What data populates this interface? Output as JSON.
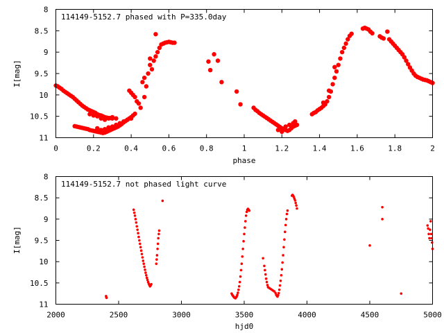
{
  "chart_data": [
    {
      "type": "scatter",
      "title": "114149-5152.7 phased with P=335.0day",
      "xlabel": "phase",
      "ylabel": "I[mag]",
      "xlim": [
        0,
        2
      ],
      "ylim": [
        11,
        8
      ],
      "y_inverted": true,
      "grid": false,
      "legend": "none",
      "marker": "filled-circle",
      "color": "#ff0000",
      "xticks": [
        0,
        0.2,
        0.4,
        0.6,
        0.8,
        1,
        1.2,
        1.4,
        1.6,
        1.8,
        2
      ],
      "xtick_labels": [
        "0",
        "0.2",
        "0.4",
        "0.6",
        "0.8",
        "1",
        "1.2",
        "1.4",
        "1.6",
        "1.8",
        "2"
      ],
      "yticks": [
        8,
        8.5,
        9,
        9.5,
        10,
        10.5,
        11
      ],
      "ytick_labels": [
        "8",
        "8.5",
        "9",
        "9.5",
        "10",
        "10.5",
        "11"
      ],
      "points": [
        [
          0.0,
          9.78
        ],
        [
          0.01,
          9.8
        ],
        [
          0.02,
          9.83
        ],
        [
          0.03,
          9.86
        ],
        [
          0.04,
          9.9
        ],
        [
          0.05,
          9.93
        ],
        [
          0.06,
          9.96
        ],
        [
          0.07,
          9.99
        ],
        [
          0.08,
          10.02
        ],
        [
          0.09,
          10.05
        ],
        [
          0.1,
          10.09
        ],
        [
          0.11,
          10.13
        ],
        [
          0.12,
          10.17
        ],
        [
          0.13,
          10.21
        ],
        [
          0.14,
          10.25
        ],
        [
          0.15,
          10.28
        ],
        [
          0.16,
          10.31
        ],
        [
          0.17,
          10.34
        ],
        [
          0.18,
          10.36
        ],
        [
          0.19,
          10.38
        ],
        [
          0.2,
          10.4
        ],
        [
          0.21,
          10.42
        ],
        [
          0.22,
          10.45
        ],
        [
          0.23,
          10.47
        ],
        [
          0.24,
          10.48
        ],
        [
          0.25,
          10.5
        ],
        [
          0.26,
          10.52
        ],
        [
          0.27,
          10.53
        ],
        [
          0.28,
          10.54
        ],
        [
          0.29,
          10.54
        ],
        [
          0.3,
          10.55
        ],
        [
          0.18,
          10.45
        ],
        [
          0.2,
          10.48
        ],
        [
          0.22,
          10.5
        ],
        [
          0.24,
          10.55
        ],
        [
          0.26,
          10.58
        ],
        [
          0.28,
          10.55
        ],
        [
          0.3,
          10.52
        ],
        [
          0.32,
          10.55
        ],
        [
          0.1,
          10.73
        ],
        [
          0.11,
          10.74
        ],
        [
          0.12,
          10.75
        ],
        [
          0.13,
          10.76
        ],
        [
          0.14,
          10.77
        ],
        [
          0.15,
          10.78
        ],
        [
          0.16,
          10.79
        ],
        [
          0.17,
          10.8
        ],
        [
          0.18,
          10.82
        ],
        [
          0.19,
          10.83
        ],
        [
          0.2,
          10.84
        ],
        [
          0.21,
          10.85
        ],
        [
          0.22,
          10.86
        ],
        [
          0.23,
          10.87
        ],
        [
          0.24,
          10.88
        ],
        [
          0.25,
          10.89
        ],
        [
          0.26,
          10.88
        ],
        [
          0.27,
          10.86
        ],
        [
          0.28,
          10.84
        ],
        [
          0.29,
          10.82
        ],
        [
          0.3,
          10.8
        ],
        [
          0.31,
          10.78
        ],
        [
          0.32,
          10.76
        ],
        [
          0.33,
          10.74
        ],
        [
          0.34,
          10.71
        ],
        [
          0.35,
          10.68
        ],
        [
          0.36,
          10.64
        ],
        [
          0.37,
          10.61
        ],
        [
          0.38,
          10.58
        ],
        [
          0.39,
          10.55
        ],
        [
          0.4,
          10.52
        ],
        [
          0.41,
          10.48
        ],
        [
          0.42,
          10.44
        ],
        [
          0.22,
          10.78
        ],
        [
          0.24,
          10.82
        ],
        [
          0.26,
          10.8
        ],
        [
          0.28,
          10.76
        ],
        [
          0.3,
          10.74
        ],
        [
          0.32,
          10.7
        ],
        [
          0.34,
          10.66
        ],
        [
          0.36,
          10.62
        ],
        [
          0.38,
          10.58
        ],
        [
          0.4,
          10.55
        ],
        [
          0.39,
          9.9
        ],
        [
          0.4,
          9.95
        ],
        [
          0.41,
          10.0
        ],
        [
          0.42,
          10.05
        ],
        [
          0.43,
          10.15
        ],
        [
          0.44,
          10.2
        ],
        [
          0.45,
          10.3
        ],
        [
          0.46,
          9.7
        ],
        [
          0.47,
          9.6
        ],
        [
          0.48,
          9.8
        ],
        [
          0.49,
          9.5
        ],
        [
          0.5,
          9.3
        ],
        [
          0.51,
          9.4
        ],
        [
          0.52,
          9.2
        ],
        [
          0.53,
          9.1
        ],
        [
          0.54,
          9.0
        ],
        [
          0.55,
          8.9
        ],
        [
          0.56,
          8.82
        ],
        [
          0.57,
          8.8
        ],
        [
          0.58,
          8.78
        ],
        [
          0.59,
          8.77
        ],
        [
          0.6,
          8.76
        ],
        [
          0.61,
          8.77
        ],
        [
          0.62,
          8.78
        ],
        [
          0.63,
          8.78
        ],
        [
          0.53,
          8.58
        ],
        [
          0.5,
          9.15
        ],
        [
          0.47,
          10.05
        ],
        [
          0.81,
          9.22
        ],
        [
          0.82,
          9.42
        ],
        [
          0.84,
          9.05
        ],
        [
          0.86,
          9.2
        ],
        [
          0.88,
          9.7
        ],
        [
          0.96,
          9.92
        ],
        [
          0.98,
          10.22
        ],
        [
          1.05,
          10.3
        ],
        [
          1.06,
          10.35
        ],
        [
          1.07,
          10.38
        ],
        [
          1.08,
          10.42
        ],
        [
          1.09,
          10.45
        ],
        [
          1.1,
          10.48
        ],
        [
          1.11,
          10.51
        ],
        [
          1.12,
          10.54
        ],
        [
          1.13,
          10.57
        ],
        [
          1.14,
          10.6
        ],
        [
          1.15,
          10.63
        ],
        [
          1.16,
          10.66
        ],
        [
          1.17,
          10.69
        ],
        [
          1.18,
          10.72
        ],
        [
          1.19,
          10.75
        ],
        [
          1.2,
          10.78
        ],
        [
          1.21,
          10.8
        ],
        [
          1.22,
          10.82
        ],
        [
          1.23,
          10.84
        ],
        [
          1.24,
          10.82
        ],
        [
          1.25,
          10.78
        ],
        [
          1.26,
          10.74
        ],
        [
          1.27,
          10.72
        ],
        [
          1.28,
          10.7
        ],
        [
          1.18,
          10.82
        ],
        [
          1.2,
          10.86
        ],
        [
          1.22,
          10.74
        ],
        [
          1.24,
          10.7
        ],
        [
          1.26,
          10.66
        ],
        [
          1.27,
          10.62
        ],
        [
          1.36,
          10.45
        ],
        [
          1.37,
          10.42
        ],
        [
          1.38,
          10.4
        ],
        [
          1.39,
          10.36
        ],
        [
          1.4,
          10.33
        ],
        [
          1.41,
          10.3
        ],
        [
          1.42,
          10.26
        ],
        [
          1.43,
          10.22
        ],
        [
          1.44,
          10.15
        ],
        [
          1.45,
          10.05
        ],
        [
          1.46,
          9.92
        ],
        [
          1.47,
          9.75
        ],
        [
          1.48,
          9.6
        ],
        [
          1.49,
          9.45
        ],
        [
          1.5,
          9.3
        ],
        [
          1.51,
          9.15
        ],
        [
          1.52,
          9.0
        ],
        [
          1.53,
          8.9
        ],
        [
          1.54,
          8.8
        ],
        [
          1.55,
          8.7
        ],
        [
          1.56,
          8.62
        ],
        [
          1.57,
          8.57
        ],
        [
          1.42,
          10.18
        ],
        [
          1.45,
          9.9
        ],
        [
          1.48,
          9.35
        ],
        [
          1.63,
          8.45
        ],
        [
          1.64,
          8.43
        ],
        [
          1.65,
          8.45
        ],
        [
          1.66,
          8.47
        ],
        [
          1.67,
          8.52
        ],
        [
          1.68,
          8.56
        ],
        [
          1.72,
          8.63
        ],
        [
          1.73,
          8.66
        ],
        [
          1.74,
          8.68
        ],
        [
          1.76,
          8.52
        ],
        [
          1.77,
          8.7
        ],
        [
          1.78,
          8.75
        ],
        [
          1.79,
          8.8
        ],
        [
          1.8,
          8.85
        ],
        [
          1.81,
          8.9
        ],
        [
          1.82,
          8.95
        ],
        [
          1.83,
          9.0
        ],
        [
          1.84,
          9.05
        ],
        [
          1.85,
          9.12
        ],
        [
          1.86,
          9.2
        ],
        [
          1.87,
          9.28
        ],
        [
          1.88,
          9.36
        ],
        [
          1.89,
          9.43
        ],
        [
          1.9,
          9.5
        ],
        [
          1.91,
          9.55
        ],
        [
          1.92,
          9.58
        ],
        [
          1.93,
          9.6
        ],
        [
          1.94,
          9.62
        ],
        [
          1.95,
          9.64
        ],
        [
          1.96,
          9.65
        ],
        [
          1.97,
          9.66
        ],
        [
          1.98,
          9.68
        ],
        [
          1.99,
          9.7
        ],
        [
          2.0,
          9.72
        ]
      ]
    },
    {
      "type": "scatter",
      "title": "114149-5152.7 not phased light curve",
      "xlabel": "hjd0",
      "ylabel": "I[mag]",
      "xlim": [
        2000,
        5000
      ],
      "ylim": [
        11,
        8
      ],
      "y_inverted": true,
      "grid": false,
      "legend": "none",
      "marker": "small-filled-circle",
      "color": "#ff0000",
      "xticks": [
        2000,
        2500,
        3000,
        3500,
        4000,
        4500,
        5000
      ],
      "xtick_labels": [
        "2000",
        "2500",
        "3000",
        "3500",
        "4000",
        "4500",
        "5000"
      ],
      "yticks": [
        8,
        8.5,
        9,
        9.5,
        10,
        10.5,
        11
      ],
      "ytick_labels": [
        "8",
        "8.5",
        "9",
        "9.5",
        "10",
        "10.5",
        "11"
      ],
      "points": [
        [
          2400,
          10.81
        ],
        [
          2402,
          10.84
        ],
        [
          2404,
          10.85
        ],
        [
          2620,
          8.78
        ],
        [
          2625,
          8.85
        ],
        [
          2630,
          8.92
        ],
        [
          2635,
          9.0
        ],
        [
          2640,
          9.08
        ],
        [
          2645,
          9.17
        ],
        [
          2650,
          9.25
        ],
        [
          2655,
          9.33
        ],
        [
          2660,
          9.42
        ],
        [
          2665,
          9.5
        ],
        [
          2670,
          9.58
        ],
        [
          2675,
          9.66
        ],
        [
          2680,
          9.74
        ],
        [
          2685,
          9.82
        ],
        [
          2690,
          9.9
        ],
        [
          2695,
          9.98
        ],
        [
          2700,
          10.05
        ],
        [
          2705,
          10.12
        ],
        [
          2710,
          10.19
        ],
        [
          2715,
          10.26
        ],
        [
          2720,
          10.32
        ],
        [
          2725,
          10.38
        ],
        [
          2730,
          10.43
        ],
        [
          2735,
          10.48
        ],
        [
          2740,
          10.52
        ],
        [
          2745,
          10.55
        ],
        [
          2750,
          10.58
        ],
        [
          2755,
          10.56
        ],
        [
          2760,
          10.53
        ],
        [
          2800,
          10.05
        ],
        [
          2803,
          9.95
        ],
        [
          2806,
          9.85
        ],
        [
          2810,
          9.7
        ],
        [
          2813,
          9.58
        ],
        [
          2816,
          9.45
        ],
        [
          2820,
          9.35
        ],
        [
          2823,
          9.27
        ],
        [
          2850,
          8.57
        ],
        [
          3400,
          10.75
        ],
        [
          3405,
          10.78
        ],
        [
          3410,
          10.8
        ],
        [
          3415,
          10.82
        ],
        [
          3420,
          10.84
        ],
        [
          3425,
          10.85
        ],
        [
          3430,
          10.86
        ],
        [
          3435,
          10.84
        ],
        [
          3440,
          10.82
        ],
        [
          3445,
          10.78
        ],
        [
          3450,
          10.73
        ],
        [
          3455,
          10.66
        ],
        [
          3460,
          10.58
        ],
        [
          3465,
          10.48
        ],
        [
          3470,
          10.35
        ],
        [
          3475,
          10.2
        ],
        [
          3480,
          10.05
        ],
        [
          3485,
          9.88
        ],
        [
          3490,
          9.7
        ],
        [
          3495,
          9.52
        ],
        [
          3500,
          9.35
        ],
        [
          3505,
          9.2
        ],
        [
          3510,
          9.05
        ],
        [
          3515,
          8.92
        ],
        [
          3520,
          8.83
        ],
        [
          3525,
          8.78
        ],
        [
          3530,
          8.76
        ],
        [
          3535,
          8.78
        ],
        [
          3540,
          8.8
        ],
        [
          3650,
          9.92
        ],
        [
          3660,
          10.1
        ],
        [
          3665,
          10.2
        ],
        [
          3670,
          10.3
        ],
        [
          3675,
          10.4
        ],
        [
          3680,
          10.48
        ],
        [
          3685,
          10.55
        ],
        [
          3690,
          10.6
        ],
        [
          3700,
          10.62
        ],
        [
          3710,
          10.64
        ],
        [
          3720,
          10.66
        ],
        [
          3730,
          10.68
        ],
        [
          3740,
          10.7
        ],
        [
          3750,
          10.74
        ],
        [
          3755,
          10.78
        ],
        [
          3760,
          10.8
        ],
        [
          3765,
          10.82
        ],
        [
          3770,
          10.79
        ],
        [
          3775,
          10.74
        ],
        [
          3780,
          10.66
        ],
        [
          3785,
          10.56
        ],
        [
          3790,
          10.45
        ],
        [
          3795,
          10.32
        ],
        [
          3800,
          10.18
        ],
        [
          3805,
          10.02
        ],
        [
          3810,
          9.85
        ],
        [
          3815,
          9.66
        ],
        [
          3820,
          9.48
        ],
        [
          3825,
          9.3
        ],
        [
          3830,
          9.14
        ],
        [
          3835,
          9.0
        ],
        [
          3840,
          8.88
        ],
        [
          3845,
          8.8
        ],
        [
          3880,
          8.45
        ],
        [
          3885,
          8.43
        ],
        [
          3890,
          8.45
        ],
        [
          3895,
          8.48
        ],
        [
          3900,
          8.52
        ],
        [
          3905,
          8.56
        ],
        [
          3910,
          8.62
        ],
        [
          3915,
          8.68
        ],
        [
          3920,
          8.75
        ],
        [
          4500,
          9.62
        ],
        [
          4600,
          8.72
        ],
        [
          4600,
          9.0
        ],
        [
          4750,
          10.75
        ],
        [
          4960,
          9.15
        ],
        [
          4965,
          9.22
        ],
        [
          4970,
          9.35
        ],
        [
          4975,
          9.45
        ],
        [
          4980,
          9.25
        ],
        [
          4985,
          9.05
        ],
        [
          4990,
          9.35
        ],
        [
          4993,
          9.45
        ],
        [
          4996,
          9.55
        ],
        [
          5000,
          9.7
        ]
      ]
    }
  ]
}
